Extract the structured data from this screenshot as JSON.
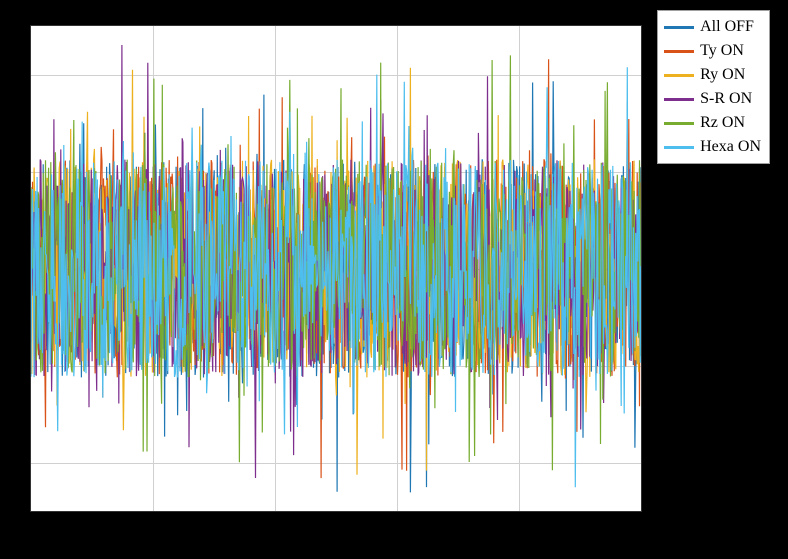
{
  "chart": {
    "type": "line-noise",
    "background_color": "#ffffff",
    "page_background": "#000000",
    "grid_color": "#d0d0d0",
    "border_color": "#333333",
    "xlim": [
      0,
      1
    ],
    "ylim": [
      -1,
      1
    ],
    "grid_x_positions": [
      0.2,
      0.4,
      0.6,
      0.8
    ],
    "grid_y_positions": [
      0.1,
      0.3,
      0.5,
      0.7,
      0.9
    ],
    "n_points": 800,
    "noise_envelope_center": 0.0,
    "noise_base_amplitude": 0.45,
    "noise_spike_amplitude": 0.95,
    "spike_probability": 0.08,
    "line_width": 1.2,
    "series": [
      {
        "label": "All OFF",
        "color": "#1f77b4",
        "seed": 11
      },
      {
        "label": "Ty ON",
        "color": "#d95319",
        "seed": 22
      },
      {
        "label": "Ry ON",
        "color": "#edb120",
        "seed": 33
      },
      {
        "label": "S-R ON",
        "color": "#7e2f8e",
        "seed": 44
      },
      {
        "label": "Rz ON",
        "color": "#77ac30",
        "seed": 55
      },
      {
        "label": "Hexa ON",
        "color": "#4dbeee",
        "seed": 66
      }
    ],
    "legend": {
      "fontsize": 16,
      "font_family": "Times New Roman, serif",
      "swatch_width": 30,
      "swatch_height": 3,
      "position": "top-right-outside"
    }
  }
}
